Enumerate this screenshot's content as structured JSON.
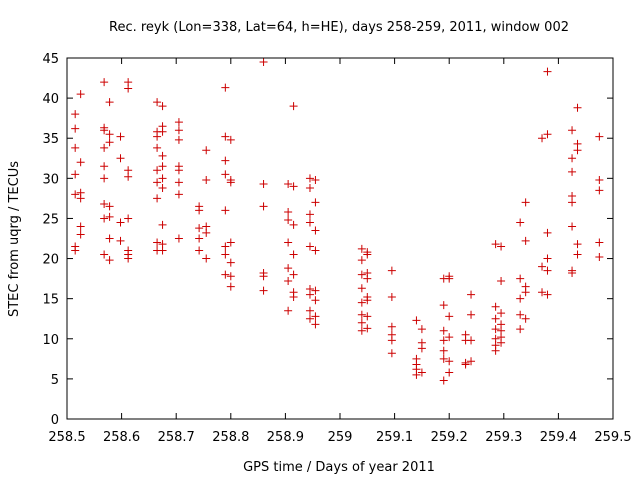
{
  "chart_data": {
    "type": "scatter",
    "title": "Rec. reyk (Lon=338, Lat=64, h=HE), days 258-259, 2011, window 002",
    "xlabel": "GPS time / Days of year 2011",
    "ylabel": "STEC from uqrg / TECUs",
    "xlim": [
      258.5,
      259.5
    ],
    "ylim": [
      0,
      45
    ],
    "x_ticks": [
      258.5,
      258.6,
      258.7,
      258.8,
      258.9,
      259.0,
      259.1,
      259.2,
      259.3,
      259.4,
      259.5
    ],
    "x_tick_labels": [
      "258.5",
      "258.6",
      "258.7",
      "258.8",
      "258.9",
      "259",
      "259.1",
      "259.2",
      "259.3",
      "259.4",
      "259.5"
    ],
    "y_ticks": [
      0,
      5,
      10,
      15,
      20,
      25,
      30,
      35,
      40,
      45
    ],
    "y_tick_labels": [
      "0",
      "5",
      "10",
      "15",
      "20",
      "25",
      "30",
      "35",
      "40",
      "45"
    ],
    "grid": false,
    "marker": "+",
    "color": "#cc0000",
    "points": [
      [
        258.515,
        21.0
      ],
      [
        258.515,
        21.5
      ],
      [
        258.515,
        28.0
      ],
      [
        258.515,
        30.5
      ],
      [
        258.515,
        33.8
      ],
      [
        258.515,
        36.2
      ],
      [
        258.515,
        38.0
      ],
      [
        258.525,
        24.0
      ],
      [
        258.525,
        23.0
      ],
      [
        258.525,
        27.5
      ],
      [
        258.525,
        28.2
      ],
      [
        258.525,
        32.0
      ],
      [
        258.525,
        40.5
      ],
      [
        258.568,
        20.5
      ],
      [
        258.568,
        25.0
      ],
      [
        258.568,
        26.8
      ],
      [
        258.568,
        30.0
      ],
      [
        258.568,
        31.5
      ],
      [
        258.568,
        33.8
      ],
      [
        258.568,
        36.3
      ],
      [
        258.568,
        36.0
      ],
      [
        258.568,
        42.0
      ],
      [
        258.578,
        19.8
      ],
      [
        258.578,
        22.5
      ],
      [
        258.578,
        25.2
      ],
      [
        258.578,
        26.5
      ],
      [
        258.578,
        34.5
      ],
      [
        258.578,
        35.5
      ],
      [
        258.578,
        39.5
      ],
      [
        258.598,
        22.2
      ],
      [
        258.598,
        24.5
      ],
      [
        258.598,
        32.5
      ],
      [
        258.598,
        35.2
      ],
      [
        258.612,
        20.0
      ],
      [
        258.612,
        20.5
      ],
      [
        258.612,
        21.0
      ],
      [
        258.612,
        25.0
      ],
      [
        258.612,
        30.2
      ],
      [
        258.612,
        31.0
      ],
      [
        258.612,
        41.2
      ],
      [
        258.612,
        42.0
      ],
      [
        258.665,
        21.0
      ],
      [
        258.665,
        22.0
      ],
      [
        258.665,
        27.5
      ],
      [
        258.665,
        29.5
      ],
      [
        258.665,
        31.0
      ],
      [
        258.665,
        33.8
      ],
      [
        258.665,
        35.2
      ],
      [
        258.665,
        35.8
      ],
      [
        258.665,
        39.5
      ],
      [
        258.675,
        21.0
      ],
      [
        258.675,
        21.8
      ],
      [
        258.675,
        24.2
      ],
      [
        258.675,
        28.8
      ],
      [
        258.675,
        30.0
      ],
      [
        258.675,
        31.5
      ],
      [
        258.675,
        32.8
      ],
      [
        258.675,
        35.8
      ],
      [
        258.675,
        36.5
      ],
      [
        258.675,
        39.0
      ],
      [
        258.705,
        22.5
      ],
      [
        258.705,
        28.0
      ],
      [
        258.705,
        29.5
      ],
      [
        258.705,
        31.0
      ],
      [
        258.705,
        31.5
      ],
      [
        258.705,
        34.8
      ],
      [
        258.705,
        36.0
      ],
      [
        258.705,
        37.0
      ],
      [
        258.742,
        21.0
      ],
      [
        258.742,
        22.5
      ],
      [
        258.742,
        23.8
      ],
      [
        258.742,
        26.0
      ],
      [
        258.742,
        26.5
      ],
      [
        258.755,
        20.0
      ],
      [
        258.755,
        23.2
      ],
      [
        258.755,
        24.0
      ],
      [
        258.755,
        29.8
      ],
      [
        258.755,
        33.5
      ],
      [
        258.79,
        18.0
      ],
      [
        258.79,
        20.5
      ],
      [
        258.79,
        21.5
      ],
      [
        258.79,
        26.0
      ],
      [
        258.79,
        30.5
      ],
      [
        258.79,
        32.2
      ],
      [
        258.79,
        35.2
      ],
      [
        258.79,
        41.3
      ],
      [
        258.8,
        16.5
      ],
      [
        258.8,
        17.8
      ],
      [
        258.8,
        19.5
      ],
      [
        258.8,
        22.0
      ],
      [
        258.8,
        29.5
      ],
      [
        258.8,
        29.8
      ],
      [
        258.8,
        34.8
      ],
      [
        258.86,
        16.0
      ],
      [
        258.86,
        17.8
      ],
      [
        258.86,
        18.2
      ],
      [
        258.86,
        26.5
      ],
      [
        258.86,
        29.3
      ],
      [
        258.86,
        44.5
      ],
      [
        258.905,
        13.5
      ],
      [
        258.905,
        17.2
      ],
      [
        258.905,
        18.8
      ],
      [
        258.905,
        22.0
      ],
      [
        258.905,
        24.8
      ],
      [
        258.905,
        25.8
      ],
      [
        258.905,
        29.3
      ],
      [
        258.915,
        15.2
      ],
      [
        258.915,
        15.8
      ],
      [
        258.915,
        18.0
      ],
      [
        258.915,
        20.5
      ],
      [
        258.915,
        24.2
      ],
      [
        258.915,
        29.0
      ],
      [
        258.915,
        39.0
      ],
      [
        258.945,
        12.5
      ],
      [
        258.945,
        13.5
      ],
      [
        258.945,
        15.5
      ],
      [
        258.945,
        16.2
      ],
      [
        258.945,
        21.5
      ],
      [
        258.945,
        24.5
      ],
      [
        258.945,
        25.5
      ],
      [
        258.945,
        28.8
      ],
      [
        258.945,
        30.0
      ],
      [
        258.955,
        11.8
      ],
      [
        258.955,
        12.8
      ],
      [
        258.955,
        14.8
      ],
      [
        258.955,
        16.0
      ],
      [
        258.955,
        21.0
      ],
      [
        258.955,
        23.5
      ],
      [
        258.955,
        27.0
      ],
      [
        258.955,
        29.8
      ],
      [
        259.04,
        11.0
      ],
      [
        259.04,
        12.0
      ],
      [
        259.04,
        13.0
      ],
      [
        259.04,
        14.5
      ],
      [
        259.04,
        16.3
      ],
      [
        259.04,
        18.0
      ],
      [
        259.04,
        19.8
      ],
      [
        259.04,
        21.2
      ],
      [
        259.05,
        11.3
      ],
      [
        259.05,
        12.8
      ],
      [
        259.05,
        14.8
      ],
      [
        259.05,
        15.2
      ],
      [
        259.05,
        17.5
      ],
      [
        259.05,
        18.2
      ],
      [
        259.05,
        20.5
      ],
      [
        259.05,
        20.8
      ],
      [
        259.095,
        8.2
      ],
      [
        259.095,
        9.8
      ],
      [
        259.095,
        10.5
      ],
      [
        259.095,
        11.5
      ],
      [
        259.095,
        15.2
      ],
      [
        259.095,
        18.5
      ],
      [
        259.14,
        5.5
      ],
      [
        259.14,
        6.2
      ],
      [
        259.14,
        6.8
      ],
      [
        259.14,
        7.5
      ],
      [
        259.14,
        12.3
      ],
      [
        259.15,
        5.8
      ],
      [
        259.15,
        8.8
      ],
      [
        259.15,
        9.5
      ],
      [
        259.15,
        11.2
      ],
      [
        259.19,
        4.8
      ],
      [
        259.19,
        7.5
      ],
      [
        259.19,
        8.5
      ],
      [
        259.19,
        9.8
      ],
      [
        259.19,
        11.0
      ],
      [
        259.19,
        14.2
      ],
      [
        259.19,
        17.5
      ],
      [
        259.2,
        5.8
      ],
      [
        259.2,
        7.2
      ],
      [
        259.2,
        10.2
      ],
      [
        259.2,
        12.8
      ],
      [
        259.2,
        17.5
      ],
      [
        259.2,
        17.8
      ],
      [
        259.23,
        6.8
      ],
      [
        259.23,
        7.0
      ],
      [
        259.23,
        9.8
      ],
      [
        259.23,
        10.5
      ],
      [
        259.24,
        7.2
      ],
      [
        259.24,
        9.8
      ],
      [
        259.24,
        13.0
      ],
      [
        259.24,
        15.5
      ],
      [
        259.285,
        8.5
      ],
      [
        259.285,
        9.2
      ],
      [
        259.285,
        10.0
      ],
      [
        259.285,
        11.2
      ],
      [
        259.285,
        12.5
      ],
      [
        259.285,
        14.0
      ],
      [
        259.285,
        21.8
      ],
      [
        259.295,
        9.5
      ],
      [
        259.295,
        10.2
      ],
      [
        259.295,
        11.0
      ],
      [
        259.295,
        11.8
      ],
      [
        259.295,
        13.2
      ],
      [
        259.295,
        17.2
      ],
      [
        259.295,
        21.5
      ],
      [
        259.33,
        11.2
      ],
      [
        259.33,
        13.0
      ],
      [
        259.33,
        15.0
      ],
      [
        259.33,
        17.5
      ],
      [
        259.33,
        24.5
      ],
      [
        259.34,
        12.5
      ],
      [
        259.34,
        15.8
      ],
      [
        259.34,
        16.5
      ],
      [
        259.34,
        22.2
      ],
      [
        259.34,
        27.0
      ],
      [
        259.37,
        15.8
      ],
      [
        259.37,
        19.0
      ],
      [
        259.37,
        35.0
      ],
      [
        259.38,
        15.5
      ],
      [
        259.38,
        18.5
      ],
      [
        259.38,
        20.0
      ],
      [
        259.38,
        23.2
      ],
      [
        259.38,
        35.5
      ],
      [
        259.38,
        43.3
      ],
      [
        259.425,
        18.2
      ],
      [
        259.425,
        18.5
      ],
      [
        259.425,
        24.0
      ],
      [
        259.425,
        27.0
      ],
      [
        259.425,
        27.8
      ],
      [
        259.425,
        30.8
      ],
      [
        259.425,
        32.5
      ],
      [
        259.425,
        36.0
      ],
      [
        259.435,
        20.5
      ],
      [
        259.435,
        21.8
      ],
      [
        259.435,
        33.5
      ],
      [
        259.435,
        34.3
      ],
      [
        259.435,
        38.8
      ],
      [
        259.475,
        20.2
      ],
      [
        259.475,
        22.0
      ],
      [
        259.475,
        28.5
      ],
      [
        259.475,
        29.8
      ],
      [
        259.475,
        35.2
      ]
    ]
  }
}
